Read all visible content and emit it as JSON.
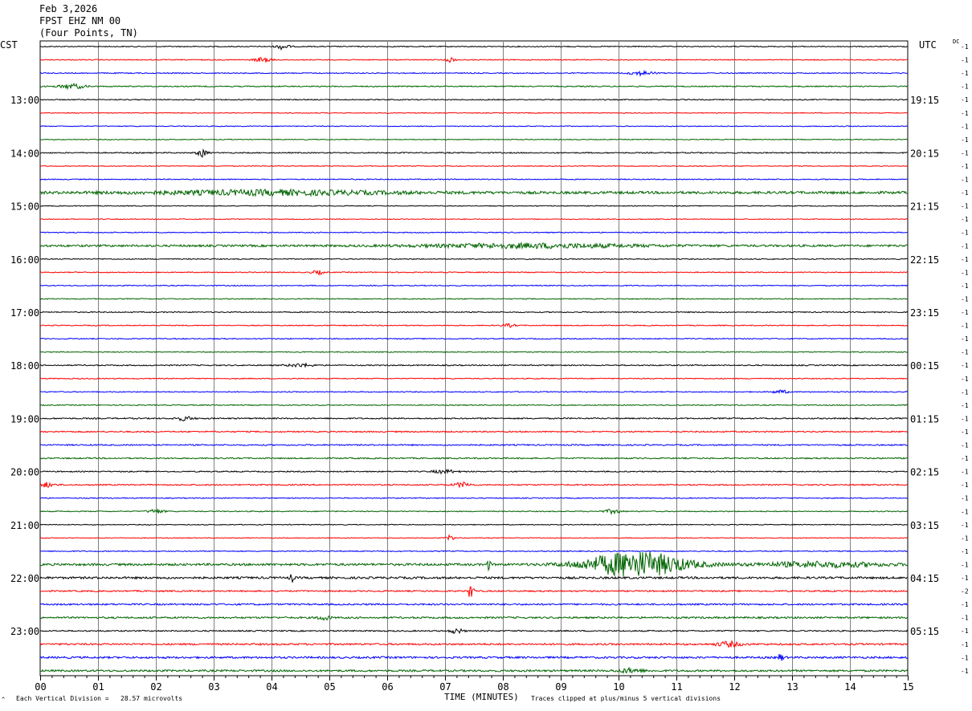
{
  "header": {
    "date": "Feb 3,2026",
    "station": "FPST EHZ NM 00",
    "location": "(Four Points, TN)"
  },
  "labels": {
    "left_zone": "CST",
    "right_zone": "UTC",
    "dc": "DC",
    "corner_mark": "^"
  },
  "footer": {
    "scale": "Each Vertical Division =   28.57 microvolts",
    "xlabel": "TIME (MINUTES)",
    "clip_note": "Traces clipped at plus/minus 5 vertical divisions"
  },
  "colors": {
    "cycle": [
      "#000000",
      "#ff0000",
      "#0000ff",
      "#006400"
    ],
    "grid": "#808080"
  },
  "chart_data": {
    "type": "line",
    "title": "FPST EHZ NM 00",
    "xlabel": "TIME (MINUTES)",
    "xlim": [
      0,
      15
    ],
    "x_ticks": [
      "00",
      "01",
      "02",
      "03",
      "04",
      "05",
      "06",
      "07",
      "08",
      "09",
      "10",
      "11",
      "12",
      "13",
      "14",
      "15"
    ],
    "rows_per_hour": 4,
    "row_count": 48,
    "left_hour_labels": [
      {
        "row": 4,
        "label": "13:00"
      },
      {
        "row": 8,
        "label": "14:00"
      },
      {
        "row": 12,
        "label": "15:00"
      },
      {
        "row": 16,
        "label": "16:00"
      },
      {
        "row": 20,
        "label": "17:00"
      },
      {
        "row": 24,
        "label": "18:00"
      },
      {
        "row": 28,
        "label": "19:00"
      },
      {
        "row": 32,
        "label": "20:00"
      },
      {
        "row": 36,
        "label": "21:00"
      },
      {
        "row": 40,
        "label": "22:00"
      },
      {
        "row": 44,
        "label": "23:00"
      }
    ],
    "right_hour_labels": [
      {
        "row": 4,
        "label": "19:15"
      },
      {
        "row": 8,
        "label": "20:15"
      },
      {
        "row": 12,
        "label": "21:15"
      },
      {
        "row": 16,
        "label": "22:15"
      },
      {
        "row": 20,
        "label": "23:15"
      },
      {
        "row": 24,
        "label": "00:15"
      },
      {
        "row": 28,
        "label": "01:15"
      },
      {
        "row": 32,
        "label": "02:15"
      },
      {
        "row": 36,
        "label": "03:15"
      },
      {
        "row": 40,
        "label": "04:15"
      },
      {
        "row": 44,
        "label": "05:15"
      }
    ],
    "dc_offsets": [
      "-1",
      "-1",
      "-1",
      "-1",
      "-1",
      "-1",
      "-1",
      "-1",
      "-1",
      "-1",
      "-1",
      "-1",
      "-1",
      "-1",
      "-1",
      "-1",
      "-1",
      "-1",
      "-1",
      "-1",
      "-1",
      "-1",
      "-1",
      "-1",
      "-1",
      "-1",
      "-1",
      "-1",
      "-1",
      "-1",
      "-1",
      "-1",
      "-1",
      "-1",
      "-1",
      "-1",
      "-1",
      "-1",
      "-1",
      "-1",
      "-1",
      "-2",
      "-1",
      "-1",
      "-1",
      "-1",
      "-1",
      "-1"
    ],
    "trace_noise": [
      0.6,
      0.6,
      0.6,
      0.7,
      0.6,
      0.5,
      0.5,
      0.5,
      0.7,
      0.5,
      0.6,
      1.6,
      0.5,
      0.5,
      0.6,
      1.3,
      0.6,
      0.6,
      0.6,
      0.6,
      0.6,
      0.6,
      0.6,
      0.6,
      0.7,
      0.6,
      0.6,
      0.6,
      0.8,
      0.8,
      0.8,
      0.8,
      0.7,
      0.8,
      0.6,
      0.6,
      0.5,
      0.5,
      0.6,
      1.4,
      1.3,
      0.9,
      1.0,
      1.1,
      0.8,
      1.1,
      1.2,
      1.2
    ],
    "events": [
      {
        "row": 0,
        "minute": 4.2,
        "amp": 3.5,
        "dur": 0.15
      },
      {
        "row": 1,
        "minute": 3.85,
        "amp": 3,
        "dur": 0.2
      },
      {
        "row": 1,
        "minute": 7.1,
        "amp": 3,
        "dur": 0.1
      },
      {
        "row": 2,
        "minute": 10.4,
        "amp": 2.5,
        "dur": 0.3
      },
      {
        "row": 3,
        "minute": 0.55,
        "amp": 3,
        "dur": 0.3
      },
      {
        "row": 8,
        "minute": 2.8,
        "amp": 5,
        "dur": 0.12
      },
      {
        "row": 11,
        "minute": 4.0,
        "amp": 2.5,
        "dur": 3.0
      },
      {
        "row": 15,
        "minute": 8.5,
        "amp": 2.5,
        "dur": 2.5
      },
      {
        "row": 17,
        "minute": 4.8,
        "amp": 2.5,
        "dur": 0.15
      },
      {
        "row": 21,
        "minute": 8.1,
        "amp": 2,
        "dur": 0.15
      },
      {
        "row": 24,
        "minute": 4.5,
        "amp": 2,
        "dur": 0.3
      },
      {
        "row": 26,
        "minute": 12.8,
        "amp": 2,
        "dur": 0.2
      },
      {
        "row": 28,
        "minute": 2.5,
        "amp": 2.5,
        "dur": 0.2
      },
      {
        "row": 32,
        "minute": 7.0,
        "amp": 2,
        "dur": 0.3
      },
      {
        "row": 33,
        "minute": 0.1,
        "amp": 3,
        "dur": 0.2
      },
      {
        "row": 33,
        "minute": 7.3,
        "amp": 3,
        "dur": 0.2
      },
      {
        "row": 35,
        "minute": 2.0,
        "amp": 2.5,
        "dur": 0.2
      },
      {
        "row": 35,
        "minute": 9.9,
        "amp": 2.5,
        "dur": 0.2
      },
      {
        "row": 37,
        "minute": 7.1,
        "amp": 4,
        "dur": 0.08
      },
      {
        "row": 39,
        "minute": 7.75,
        "amp": 6,
        "dur": 0.05
      },
      {
        "row": 39,
        "minute": 10.3,
        "amp": 16,
        "dur": 1.2
      },
      {
        "row": 39,
        "minute": 13.5,
        "amp": 3,
        "dur": 1.5
      },
      {
        "row": 40,
        "minute": 4.35,
        "amp": 5,
        "dur": 0.05
      },
      {
        "row": 41,
        "minute": 7.45,
        "amp": 12,
        "dur": 0.06
      },
      {
        "row": 43,
        "minute": 4.9,
        "amp": 3,
        "dur": 0.15
      },
      {
        "row": 44,
        "minute": 7.2,
        "amp": 3,
        "dur": 0.15
      },
      {
        "row": 45,
        "minute": 11.9,
        "amp": 3,
        "dur": 0.3
      },
      {
        "row": 46,
        "minute": 12.8,
        "amp": 4,
        "dur": 0.08
      },
      {
        "row": 47,
        "minute": 10.2,
        "amp": 2.5,
        "dur": 0.3
      }
    ]
  }
}
